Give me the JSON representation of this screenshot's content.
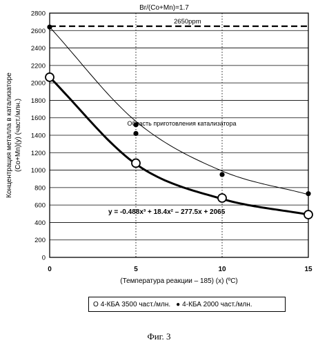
{
  "chart_data": {
    "type": "scatter",
    "title": "Br/(Co+Mn)=1.7",
    "xlabel": "(Температура реакции – 185) (x) (ºC)",
    "ylabel_line1": "Концентрация металла в катализаторе",
    "ylabel_line2": "(Co+Mn)(y) (част./млн.)",
    "xlim": [
      0,
      15
    ],
    "ylim": [
      0,
      2800
    ],
    "xticks": [
      "0",
      "5",
      "10",
      "15"
    ],
    "yticks": [
      "0",
      "200",
      "400",
      "600",
      "800",
      "1000",
      "1200",
      "1400",
      "1600",
      "1800",
      "2000",
      "2200",
      "2400",
      "2600",
      "2800"
    ],
    "reference_line": {
      "y": 2650,
      "label": "2650ppm"
    },
    "region_label": "Область приготовления катализатора",
    "equation": "y = -0.488x³ + 18.4x² – 277.5x + 2065",
    "series": [
      {
        "name": "4-КБА 3500 част./млн.",
        "marker": "open-circle",
        "x": [
          0,
          5,
          10,
          15
        ],
        "y": [
          2065,
          1080,
          680,
          490
        ]
      },
      {
        "name": "4-КБА 2000 част./млн.",
        "marker": "filled-dot",
        "x": [
          0,
          5,
          5,
          10,
          15
        ],
        "y": [
          2640,
          1520,
          1420,
          950,
          730
        ]
      }
    ],
    "curves": [
      {
        "series": "4-КБА 3500 част./млн.",
        "style": "thick",
        "points": [
          [
            0,
            2065
          ],
          [
            5,
            1070
          ],
          [
            10,
            670
          ],
          [
            15,
            490
          ]
        ]
      },
      {
        "series": "4-КБА 2000 част./млн.",
        "style": "thin",
        "points": [
          [
            0,
            2640
          ],
          [
            5,
            1560
          ],
          [
            10,
            990
          ],
          [
            15,
            720
          ]
        ]
      }
    ],
    "legend": {
      "open_symbol": "O",
      "open_label": "4-КБА 3500 част./млн.",
      "filled_symbol": "●",
      "filled_label": "4-КБА 2000 част./млн."
    },
    "colors": {
      "ink": "#000000",
      "grid": "#000000"
    }
  },
  "caption": "Фиг. 3"
}
